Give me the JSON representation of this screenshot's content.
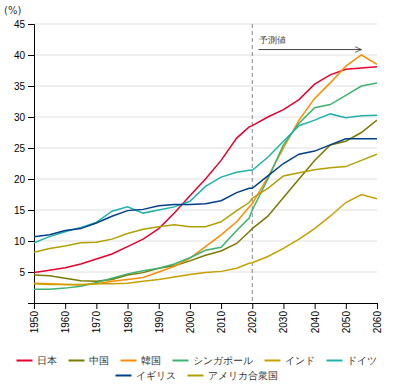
{
  "chart_data": {
    "type": "line",
    "y_label": "(%)",
    "annotations": [
      {
        "text": "予測値",
        "x": 2022,
        "y": 43.0,
        "arrow_x": [
          2022,
          2055
        ],
        "arrow_y": 41.2
      }
    ],
    "reference_lines": [
      {
        "x": 2020,
        "line_style": "dashed"
      }
    ],
    "xlim": [
      1950,
      2060
    ],
    "xticks": [
      1950,
      1960,
      1970,
      1980,
      1990,
      2000,
      2010,
      2020,
      2030,
      2040,
      2050,
      2060
    ],
    "ylim": [
      0,
      45
    ],
    "yticks": [
      5,
      10,
      15,
      20,
      25,
      30,
      35,
      40,
      45
    ],
    "grid": true,
    "legend": "bottom",
    "x": [
      1950,
      1955,
      1960,
      1965,
      1970,
      1975,
      1980,
      1985,
      1990,
      1995,
      2000,
      2005,
      2010,
      2015,
      2019,
      2020,
      2025,
      2030,
      2035,
      2040,
      2045,
      2050,
      2055,
      2060
    ],
    "series": [
      {
        "name": "日本",
        "color": "#e8002d",
        "values": [
          4.9,
          5.3,
          5.7,
          6.3,
          7.1,
          7.9,
          9.1,
          10.3,
          12.0,
          14.5,
          17.3,
          20.0,
          23.0,
          26.6,
          28.4,
          28.6,
          30.0,
          31.2,
          32.8,
          35.3,
          36.8,
          37.7,
          37.9,
          38.1
        ]
      },
      {
        "name": "中国",
        "color": "#7a7a00",
        "values": [
          4.5,
          4.4,
          4.0,
          3.6,
          3.5,
          3.8,
          4.5,
          4.9,
          5.6,
          6.0,
          6.8,
          7.7,
          8.4,
          9.6,
          11.5,
          12.0,
          14.0,
          17.0,
          20.0,
          23.0,
          25.5,
          26.1,
          27.5,
          29.5
        ]
      },
      {
        "name": "韓国",
        "color": "#ff8c00",
        "values": [
          3.2,
          3.1,
          3.0,
          2.9,
          3.1,
          3.5,
          3.8,
          4.1,
          5.0,
          5.9,
          7.2,
          9.1,
          11.0,
          13.1,
          15.5,
          16.0,
          20.3,
          25.0,
          29.5,
          33.0,
          35.5,
          38.2,
          40.0,
          38.5
        ]
      },
      {
        "name": "シンガポール",
        "color": "#3cb371",
        "values": [
          2.2,
          2.2,
          2.4,
          2.7,
          3.3,
          4.0,
          4.7,
          5.2,
          5.6,
          6.3,
          7.3,
          8.5,
          9.0,
          11.7,
          13.7,
          15.0,
          20.0,
          25.5,
          29.0,
          31.5,
          32.0,
          33.5,
          35.0,
          35.5
        ]
      },
      {
        "name": "インド",
        "color": "#c8a000",
        "values": [
          3.1,
          3.0,
          3.0,
          3.0,
          3.1,
          3.1,
          3.2,
          3.5,
          3.8,
          4.2,
          4.6,
          4.9,
          5.1,
          5.6,
          6.4,
          6.5,
          7.5,
          8.8,
          10.3,
          12.0,
          14.0,
          16.2,
          17.5,
          16.8
        ]
      },
      {
        "name": "ドイツ",
        "color": "#20b2aa",
        "values": [
          9.7,
          10.7,
          11.5,
          12.2,
          13.0,
          14.8,
          15.5,
          14.5,
          15.0,
          15.5,
          16.4,
          18.8,
          20.3,
          21.1,
          21.4,
          21.4,
          23.5,
          26.1,
          28.6,
          29.5,
          30.5,
          29.9,
          30.2,
          30.3
        ]
      },
      {
        "name": "イギリス",
        "color": "#003f8a",
        "values": [
          10.7,
          11.0,
          11.7,
          12.0,
          12.9,
          14.0,
          14.9,
          15.1,
          15.7,
          15.9,
          15.9,
          16.0,
          16.5,
          17.8,
          18.5,
          18.5,
          20.5,
          22.5,
          24.0,
          24.5,
          25.5,
          26.5,
          26.5,
          26.5
        ]
      },
      {
        "name": "アメリカ合衆国",
        "color": "#b0a000",
        "values": [
          8.2,
          8.8,
          9.2,
          9.7,
          9.8,
          10.3,
          11.2,
          11.9,
          12.3,
          12.6,
          12.3,
          12.3,
          13.1,
          14.9,
          16.2,
          16.9,
          18.5,
          20.5,
          21.0,
          21.5,
          21.8,
          22.0,
          23.0,
          24.0
        ]
      }
    ]
  }
}
